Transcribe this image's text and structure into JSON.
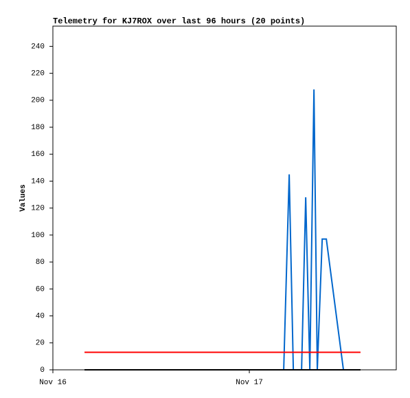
{
  "chart_data": {
    "type": "line",
    "title": "Telemetry for KJ7ROX over last 96 hours (20 points)",
    "y_label": "Values",
    "xlim": [
      0,
      1.748
    ],
    "xticks": [
      {
        "value": 0,
        "label": "Nov 16"
      },
      {
        "value": 1,
        "label": "Nov 17"
      }
    ],
    "ylim": [
      0,
      255
    ],
    "yticks": [
      0,
      20,
      40,
      60,
      80,
      100,
      120,
      140,
      160,
      180,
      200,
      220,
      240
    ],
    "series": [
      {
        "color": "#0066cc",
        "x": [
          1.175,
          1.203,
          1.224,
          1.266,
          1.287,
          1.308,
          1.329,
          1.346,
          1.371,
          1.392,
          1.479
        ],
        "values": [
          0,
          145,
          0,
          0,
          128,
          0,
          208,
          0,
          97,
          97,
          0
        ]
      },
      {
        "color": "#ff0000",
        "x": [
          0.161,
          1.566
        ],
        "values": [
          13,
          13
        ]
      },
      {
        "color": "#000000",
        "x": [
          0.161,
          1.566
        ],
        "values": [
          0,
          0
        ]
      }
    ]
  }
}
